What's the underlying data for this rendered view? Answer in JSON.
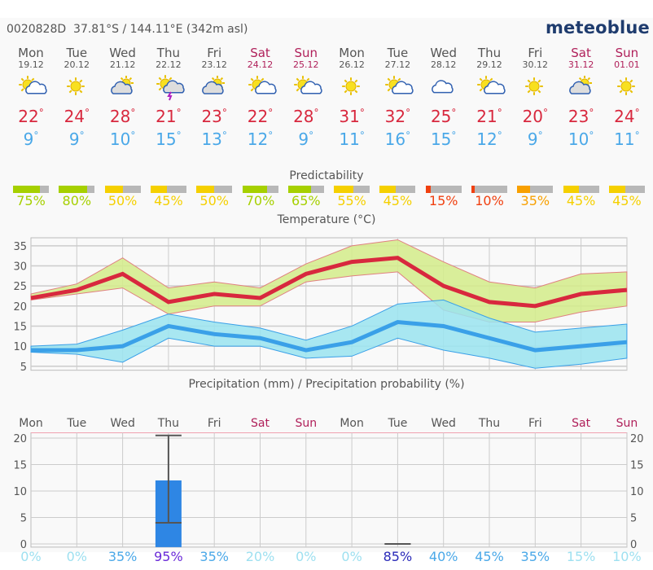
{
  "header": {
    "station": "0020828D",
    "location": "37.81°S / 144.11°E (342m asl)",
    "logo": "meteoblue"
  },
  "days": [
    {
      "name": "Mon",
      "date": "19.12",
      "weekend": false,
      "icon": "sun-cloud",
      "max": "22",
      "min": "9",
      "pred": 75,
      "pred_label": "75%",
      "pred_color": "#a6d000"
    },
    {
      "name": "Tue",
      "date": "20.12",
      "weekend": false,
      "icon": "sun",
      "max": "24",
      "min": "9",
      "pred": 80,
      "pred_label": "80%",
      "pred_color": "#a6d000"
    },
    {
      "name": "Wed",
      "date": "21.12",
      "weekend": false,
      "icon": "cloud-sun",
      "max": "28",
      "min": "10",
      "pred": 50,
      "pred_label": "50%",
      "pred_color": "#f5d000"
    },
    {
      "name": "Thu",
      "date": "22.12",
      "weekend": false,
      "icon": "sun-thunder",
      "max": "21",
      "min": "15",
      "pred": 45,
      "pred_label": "45%",
      "pred_color": "#f5d000"
    },
    {
      "name": "Fri",
      "date": "23.12",
      "weekend": false,
      "icon": "cloud-sun",
      "max": "23",
      "min": "13",
      "pred": 50,
      "pred_label": "50%",
      "pred_color": "#f5d000"
    },
    {
      "name": "Sat",
      "date": "24.12",
      "weekend": true,
      "icon": "sun-cloud",
      "max": "22",
      "min": "12",
      "pred": 70,
      "pred_label": "70%",
      "pred_color": "#a6d000"
    },
    {
      "name": "Sun",
      "date": "25.12",
      "weekend": true,
      "icon": "sun-cloud",
      "max": "28",
      "min": "9",
      "pred": 65,
      "pred_label": "65%",
      "pred_color": "#a6d000"
    },
    {
      "name": "Mon",
      "date": "26.12",
      "weekend": false,
      "icon": "sun",
      "max": "31",
      "min": "11",
      "pred": 55,
      "pred_label": "55%",
      "pred_color": "#f5d000"
    },
    {
      "name": "Tue",
      "date": "27.12",
      "weekend": false,
      "icon": "sun-cloud",
      "max": "32",
      "min": "16",
      "pred": 45,
      "pred_label": "45%",
      "pred_color": "#f5d000"
    },
    {
      "name": "Wed",
      "date": "28.12",
      "weekend": false,
      "icon": "cloud",
      "max": "25",
      "min": "15",
      "pred": 15,
      "pred_label": "15%",
      "pred_color": "#f04010"
    },
    {
      "name": "Thu",
      "date": "29.12",
      "weekend": false,
      "icon": "sun-cloud",
      "max": "21",
      "min": "12",
      "pred": 10,
      "pred_label": "10%",
      "pred_color": "#f04010"
    },
    {
      "name": "Fri",
      "date": "30.12",
      "weekend": false,
      "icon": "sun",
      "max": "20",
      "min": "9",
      "pred": 35,
      "pred_label": "35%",
      "pred_color": "#f8a000"
    },
    {
      "name": "Sat",
      "date": "31.12",
      "weekend": true,
      "icon": "cloud-sun",
      "max": "23",
      "min": "10",
      "pred": 45,
      "pred_label": "45%",
      "pred_color": "#f5d000"
    },
    {
      "name": "Sun",
      "date": "01.01",
      "weekend": true,
      "icon": "sun",
      "max": "24",
      "min": "11",
      "pred": 45,
      "pred_label": "45%",
      "pred_color": "#f5d000"
    }
  ],
  "degree": "°",
  "predictability_title": "Predictability",
  "chart_data": [
    {
      "type": "line",
      "title": "Temperature (°C)",
      "ylim": [
        4,
        37
      ],
      "yticks": [
        "5",
        "10",
        "15",
        "20",
        "25",
        "30",
        "35"
      ],
      "x": [
        "Mon",
        "Tue",
        "Wed",
        "Thu",
        "Fri",
        "Sat",
        "Sun",
        "Mon",
        "Tue",
        "Wed",
        "Thu",
        "Fri",
        "Sat",
        "Sun"
      ],
      "series": [
        {
          "name": "max",
          "color": "#d8283e",
          "values": [
            22,
            24,
            28,
            21,
            23,
            22,
            28,
            31,
            32,
            25,
            21,
            20,
            23,
            24
          ]
        },
        {
          "name": "max-upper",
          "values": [
            23,
            25.5,
            32,
            24.5,
            26,
            24.5,
            30.5,
            35,
            36.5,
            31,
            26,
            24.5,
            28,
            28.5
          ]
        },
        {
          "name": "max-lower",
          "values": [
            21.5,
            23,
            24.5,
            18,
            20,
            20,
            26,
            27.5,
            28.5,
            19,
            16,
            16,
            18.5,
            20
          ]
        },
        {
          "name": "min",
          "color": "#3aa0e8",
          "values": [
            9,
            9,
            10,
            15,
            13,
            12,
            9,
            11,
            16,
            15,
            12,
            9,
            10,
            11
          ]
        },
        {
          "name": "min-upper",
          "values": [
            10,
            10.5,
            14,
            18,
            16,
            14.5,
            11.5,
            15,
            20.5,
            21.5,
            17,
            13.5,
            14.5,
            15.5
          ]
        },
        {
          "name": "min-lower",
          "values": [
            8.5,
            8,
            6,
            12,
            10,
            10,
            7,
            7.5,
            12,
            9,
            7,
            4.5,
            5.5,
            7
          ]
        }
      ]
    },
    {
      "type": "bar",
      "title": "Precipitation (mm) / Precipitation probability (%)",
      "ylim": [
        -1,
        21
      ],
      "yticks": [
        "0",
        "5",
        "10",
        "15",
        "20"
      ],
      "categories": [
        "Mon",
        "Tue",
        "Wed",
        "Thu",
        "Fri",
        "Sat",
        "Sun",
        "Mon",
        "Tue",
        "Wed",
        "Thu",
        "Fri",
        "Sat",
        "Sun"
      ],
      "weekend": [
        false,
        false,
        false,
        false,
        false,
        true,
        true,
        false,
        false,
        false,
        false,
        false,
        true,
        true
      ],
      "values": [
        0,
        0,
        0,
        12,
        0,
        0,
        0,
        0,
        0,
        0,
        0,
        0,
        0,
        0
      ],
      "range_low": [
        null,
        null,
        null,
        4,
        null,
        null,
        null,
        null,
        0,
        null,
        null,
        null,
        null,
        null
      ],
      "range_high": [
        null,
        null,
        null,
        20.5,
        null,
        null,
        null,
        null,
        0,
        null,
        null,
        null,
        null,
        null
      ],
      "probability": [
        "0%",
        "0%",
        "35%",
        "95%",
        "35%",
        "20%",
        "0%",
        "0%",
        "85%",
        "40%",
        "45%",
        "35%",
        "15%",
        "10%"
      ],
      "probability_colors": [
        "#9ee0f0",
        "#9ee0f0",
        "#4aa8e8",
        "#6a2ad8",
        "#4aa8e8",
        "#9ee0f0",
        "#9ee0f0",
        "#9ee0f0",
        "#2a2ab8",
        "#4aa8e8",
        "#4aa8e8",
        "#4aa8e8",
        "#9ee0f0",
        "#9ee0f0"
      ]
    }
  ]
}
